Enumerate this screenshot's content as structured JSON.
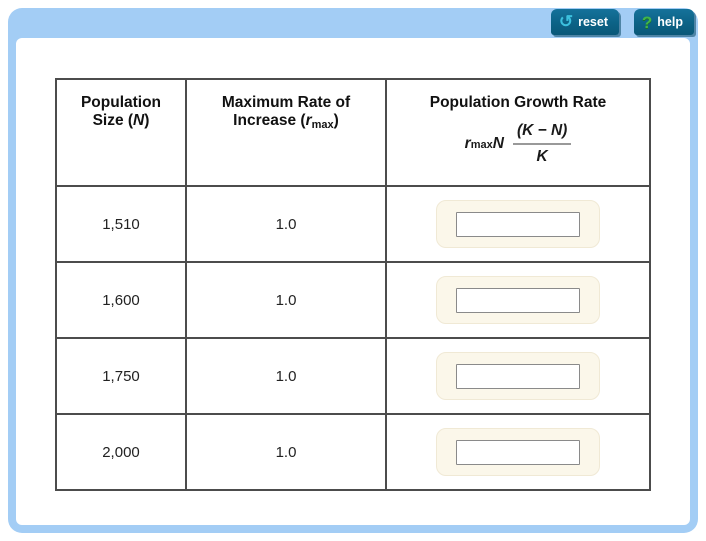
{
  "colors": {
    "frame_blue": "#a3cdf5",
    "button_teal": "#0c6286",
    "reset_icon_teal": "#3cc0de",
    "help_icon_green": "#41b549",
    "answer_wrap_cream": "#fbf7ea",
    "table_border_gray": "#4c4c4c"
  },
  "toolbar": {
    "reset_label": "reset",
    "reset_icon": "↺",
    "help_label": "help",
    "help_icon": "?"
  },
  "table": {
    "headers": {
      "col1": {
        "line1": "Population",
        "line2_pre": "Size (",
        "var": "N",
        "line2_post": ")"
      },
      "col2": {
        "line1": "Maximum Rate of",
        "line2_pre": "Increase (",
        "var": "r",
        "var_sub": "max",
        "line2_post": ")"
      },
      "col3": {
        "title": "Population Growth Rate",
        "formula": {
          "coef_var": "r",
          "coef_sub": "max",
          "n_var": "N",
          "numerator": "(K − N)",
          "denominator": "K"
        }
      }
    },
    "rows": [
      {
        "population_size": "1,510",
        "max_rate_of_increase": "1.0",
        "growth_rate_input": ""
      },
      {
        "population_size": "1,600",
        "max_rate_of_increase": "1.0",
        "growth_rate_input": ""
      },
      {
        "population_size": "1,750",
        "max_rate_of_increase": "1.0",
        "growth_rate_input": ""
      },
      {
        "population_size": "2,000",
        "max_rate_of_increase": "1.0",
        "growth_rate_input": ""
      }
    ]
  }
}
